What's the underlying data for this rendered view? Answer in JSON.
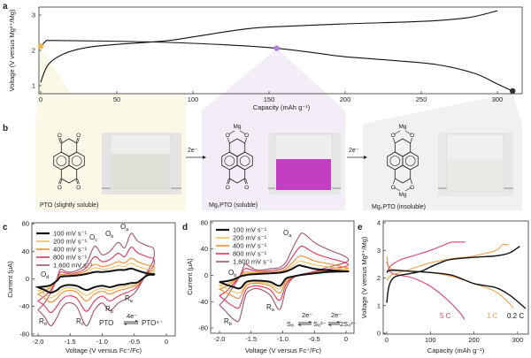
{
  "panel_letters": {
    "a": "a",
    "b": "b",
    "c": "c",
    "d": "d",
    "e": "e"
  },
  "colors": {
    "black": "#111111",
    "rate_100": "#111111",
    "rate_200": "#f5c062",
    "rate_400": "#f08a2e",
    "rate_800": "#e0345a",
    "rate_1600": "#a35566",
    "c_0_2": "#111111",
    "c_1": "#f0a050",
    "c_5": "#d9426e",
    "marker_pto": "#f0b84a",
    "marker_mg1": "#b57fd6",
    "marker_mg2": "#333333",
    "vial_mg1": "#c23fc2"
  },
  "panel_b": {
    "pto_caption": "PTO (slightly soluble)",
    "mg1_caption": "Mg₁PTO (soluble)",
    "mg2_caption": "Mg₂PTO (insoluble)",
    "arrow1_label": "2e⁻",
    "arrow2_label": "2e⁻",
    "atom_o": "O",
    "atom_mg": "Mg"
  },
  "chart_data": [
    {
      "panel": "a",
      "type": "line",
      "xlabel": "Capacity (mAh g⁻¹)",
      "ylabel": "Voltage (V versus Mg²⁺/Mg)",
      "xlim": [
        0,
        320
      ],
      "ylim": [
        0.8,
        3.25
      ],
      "xticks": [
        0,
        50,
        100,
        150,
        200,
        250,
        300
      ],
      "yticks": [
        1,
        2,
        3
      ],
      "grid": false,
      "series": [
        {
          "role": "charge",
          "x": [
            0,
            5,
            15,
            30,
            50,
            80,
            100,
            130,
            150,
            200,
            250,
            280,
            300
          ],
          "y": [
            1.1,
            1.6,
            1.9,
            2.08,
            2.17,
            2.26,
            2.38,
            2.58,
            2.66,
            2.75,
            2.82,
            2.92,
            3.12
          ]
        },
        {
          "role": "discharge",
          "x": [
            0,
            3,
            10,
            60,
            100,
            150,
            180,
            200,
            230,
            260,
            285,
            300,
            310
          ],
          "y": [
            2.05,
            2.25,
            2.28,
            2.25,
            2.2,
            2.08,
            1.93,
            1.82,
            1.72,
            1.6,
            1.35,
            1.05,
            0.85
          ]
        }
      ],
      "markers": [
        {
          "state": "PTO",
          "x": 0,
          "y": 2.12,
          "color": "#f0b84a"
        },
        {
          "state": "Mg1PTO",
          "x": 155,
          "y": 2.06,
          "color": "#b57fd6"
        },
        {
          "state": "Mg2PTO",
          "x": 310,
          "y": 0.85,
          "color": "#333333"
        }
      ]
    },
    {
      "panel": "c",
      "type": "line",
      "xlabel": "Voltage (V versus Fc⁺/Fc)",
      "ylabel": "Current (μA)",
      "xlim": [
        -2.1,
        0.1
      ],
      "ylim": [
        -80,
        80
      ],
      "xticks": [
        "-2.0",
        "-1.5",
        "-1.0",
        "-0.5",
        "0"
      ],
      "yticks": [
        "-80",
        "-40",
        "0",
        "40",
        "80"
      ],
      "x": [
        -2.0,
        -1.9,
        -1.8,
        -1.7,
        -1.65,
        -1.55,
        -1.4,
        -1.25,
        -1.12,
        -1.0,
        -0.88,
        -0.75,
        -0.65,
        -0.55,
        -0.45,
        -0.3,
        -0.2
      ],
      "series": [
        {
          "name": "100 mV s⁻¹",
          "anodic": [
            -12,
            -11,
            -9,
            -2,
            3,
            4,
            5,
            7,
            10,
            10,
            11,
            13,
            13,
            15,
            12,
            8,
            7
          ],
          "cathodic": [
            -12,
            -16,
            -20,
            -16,
            -12,
            -9,
            -10,
            -16,
            -12,
            -10,
            -12,
            -9,
            -8,
            -6,
            -5,
            5,
            6
          ]
        },
        {
          "name": "200 mV s⁻¹",
          "anodic": [
            -17,
            -15,
            -11,
            -1,
            5,
            5,
            6,
            9,
            16,
            14,
            15,
            19,
            18,
            23,
            18,
            14,
            13
          ],
          "cathodic": [
            -17,
            -22,
            -27,
            -22,
            -17,
            -13,
            -15,
            -24,
            -17,
            -14,
            -17,
            -13,
            -11,
            -9,
            -7,
            6,
            9
          ]
        },
        {
          "name": "400 mV s⁻¹",
          "anodic": [
            -22,
            -18,
            -12,
            -1,
            6,
            6,
            7,
            12,
            21,
            18,
            20,
            25,
            23,
            30,
            25,
            20,
            18
          ],
          "cathodic": [
            -22,
            -28,
            -34,
            -28,
            -22,
            -17,
            -19,
            -32,
            -22,
            -18,
            -22,
            -17,
            -15,
            -12,
            -8,
            7,
            13
          ]
        },
        {
          "name": "800 mV s⁻¹",
          "anodic": [
            -32,
            -25,
            -16,
            0,
            10,
            8,
            9,
            16,
            32,
            25,
            28,
            37,
            32,
            46,
            38,
            32,
            29
          ],
          "cathodic": [
            -32,
            -39,
            -49,
            -39,
            -32,
            -25,
            -28,
            -47,
            -32,
            -25,
            -32,
            -25,
            -21,
            -17,
            -11,
            8,
            19
          ]
        },
        {
          "name": "1,600 mV s⁻¹",
          "anodic": [
            -45,
            -35,
            -20,
            2,
            14,
            10,
            12,
            22,
            47,
            35,
            40,
            53,
            45,
            66,
            55,
            48,
            44
          ],
          "cathodic": [
            -45,
            -55,
            -68,
            -55,
            -45,
            -35,
            -40,
            -68,
            -45,
            -35,
            -46,
            -35,
            -30,
            -25,
            -15,
            10,
            28
          ]
        }
      ],
      "annotations": [
        {
          "main": "O",
          "sub": "a"
        },
        {
          "main": "O",
          "sub": "b"
        },
        {
          "main": "O",
          "sub": "c"
        },
        {
          "main": "O",
          "sub": "d"
        },
        {
          "main": "R",
          "sub": "a"
        },
        {
          "main": "R",
          "sub": "b"
        },
        {
          "main": "R",
          "sub": "c"
        },
        {
          "main": "R",
          "sub": "d"
        }
      ],
      "reaction": {
        "left": "PTO",
        "electrons": "4e⁻",
        "right": "PTO⁴⁻"
      }
    },
    {
      "panel": "d",
      "type": "line",
      "xlabel": "Voltage (V versus Fc⁺/Fc)",
      "ylabel": "Current (μA)",
      "xlim": [
        -2.1,
        0.05
      ],
      "ylim": [
        -85,
        80
      ],
      "xticks": [
        "-2.0",
        "-1.5",
        "-1.0",
        "-0.5",
        "0"
      ],
      "yticks": [
        "-80",
        "-40",
        "0",
        "40",
        "80"
      ],
      "x": [
        -2.0,
        -1.9,
        -1.8,
        -1.7,
        -1.65,
        -1.6,
        -1.55,
        -1.4,
        -1.2,
        -1.05,
        -0.95,
        -0.85,
        -0.75,
        -0.68,
        -0.5,
        -0.3,
        0
      ],
      "series": [
        {
          "name": "100 mV s⁻¹",
          "anodic": [
            -10,
            -9,
            -7,
            -3,
            -1,
            0,
            1,
            2,
            3,
            4,
            6,
            10,
            15,
            14,
            10,
            8,
            6
          ],
          "cathodic": [
            -10,
            -14,
            -17,
            -20,
            -18,
            -12,
            -9,
            -8,
            -10,
            -16,
            -5,
            -2,
            0,
            1,
            3,
            5,
            6
          ]
        },
        {
          "name": "200 mV s⁻¹",
          "anodic": [
            -15,
            -13,
            -9,
            -3,
            0,
            3,
            3,
            3,
            4,
            5,
            8,
            14,
            21,
            21,
            16,
            13,
            9
          ],
          "cathodic": [
            -15,
            -20,
            -24,
            -27,
            -24,
            -16,
            -11,
            -10,
            -13,
            -21,
            -7,
            -2,
            0,
            1,
            4,
            6,
            8
          ]
        },
        {
          "name": "400 mV s⁻¹",
          "anodic": [
            -21,
            -17,
            -11,
            -4,
            1,
            5,
            5,
            4,
            5,
            6,
            10,
            19,
            28,
            29,
            22,
            18,
            12
          ],
          "cathodic": [
            -21,
            -26,
            -31,
            -35,
            -29,
            -19,
            -14,
            -12,
            -16,
            -27,
            -10,
            -3,
            0,
            1,
            4,
            7,
            10
          ]
        },
        {
          "name": "800 mV s⁻¹",
          "anodic": [
            -31,
            -25,
            -15,
            -4,
            3,
            10,
            10,
            6,
            7,
            9,
            14,
            28,
            41,
            44,
            34,
            27,
            19
          ],
          "cathodic": [
            -31,
            -39,
            -46,
            -50,
            -40,
            -26,
            -19,
            -16,
            -22,
            -38,
            -14,
            -4,
            0,
            2,
            5,
            9,
            14
          ]
        },
        {
          "name": "1,600 mV s⁻¹",
          "anodic": [
            -45,
            -35,
            -20,
            -5,
            5,
            17,
            15,
            8,
            10,
            12,
            20,
            40,
            58,
            64,
            50,
            40,
            28
          ],
          "cathodic": [
            -45,
            -55,
            -65,
            -70,
            -55,
            -35,
            -25,
            -20,
            -30,
            -52,
            -20,
            -5,
            0,
            2,
            6,
            12,
            20
          ]
        }
      ],
      "annotations": [
        {
          "main": "O",
          "sub": "a"
        },
        {
          "main": "O",
          "sub": "b"
        },
        {
          "main": "R",
          "sub": "a"
        },
        {
          "main": "R",
          "sub": "b"
        }
      ],
      "reaction": {
        "s1": "S₈",
        "e1": "2e⁻",
        "s2": "S₈²⁻",
        "e2": "2e⁻",
        "s3": "2S₄²⁻"
      }
    },
    {
      "panel": "e",
      "type": "line",
      "xlabel": "Capacity (mAh g⁻¹)",
      "ylabel": "Voltage (V versus Mg²⁺/Mg)",
      "xlim": [
        0,
        325
      ],
      "ylim": [
        0,
        4
      ],
      "xticks": [
        "0",
        "100",
        "200",
        "300"
      ],
      "yticks": [
        "0",
        "1",
        "2",
        "3",
        "4"
      ],
      "series": [
        {
          "name": "0.2 C",
          "charge": {
            "x": [
              0,
              5,
              15,
              30,
              50,
              80,
              100,
              130,
              150,
              200,
              250,
              280,
              305
            ],
            "y": [
              1.1,
              1.7,
              2.0,
              2.1,
              2.15,
              2.25,
              2.4,
              2.6,
              2.68,
              2.75,
              2.8,
              2.9,
              3.15
            ]
          },
          "discharge": {
            "x": [
              0,
              10,
              50,
              100,
              150,
              200,
              250,
              280,
              300,
              318
            ],
            "y": [
              2.2,
              2.28,
              2.25,
              2.2,
              2.1,
              1.8,
              1.65,
              1.4,
              1.15,
              0.9
            ]
          }
        },
        {
          "name": "1 C",
          "charge": {
            "x": [
              0,
              10,
              30,
              60,
              100,
              150,
              200,
              250,
              265,
              280
            ],
            "y": [
              1.9,
              2.1,
              2.2,
              2.35,
              2.55,
              2.7,
              2.8,
              3.0,
              3.2,
              3.2
            ]
          },
          "discharge": {
            "x": [
              0,
              5,
              20,
              50,
              100,
              150,
              200,
              250,
              280,
              290
            ],
            "y": [
              2.8,
              2.4,
              2.3,
              2.25,
              2.2,
              2.05,
              1.8,
              1.5,
              1.1,
              0.9
            ]
          }
        },
        {
          "name": "5 C",
          "charge": {
            "x": [
              0,
              10,
              30,
              60,
              100,
              140,
              150,
              180
            ],
            "y": [
              2.2,
              2.45,
              2.65,
              2.8,
              3.0,
              3.25,
              3.3,
              3.3
            ]
          },
          "discharge": {
            "x": [
              0,
              10,
              30,
              60,
              100,
              140,
              170,
              178
            ],
            "y": [
              2.6,
              2.2,
              2.1,
              2.0,
              1.7,
              1.2,
              0.7,
              0.5
            ]
          }
        }
      ]
    }
  ]
}
